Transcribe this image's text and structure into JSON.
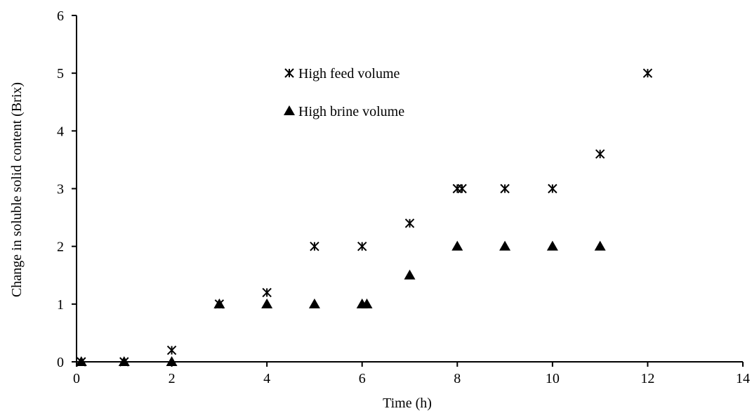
{
  "chart_data": {
    "type": "scatter",
    "title": "",
    "xlabel": "Time (h)",
    "ylabel": "Change in soluble solid content (Brix)",
    "xlim": [
      0,
      14
    ],
    "ylim": [
      0,
      6
    ],
    "xticks": [
      0,
      2,
      4,
      6,
      8,
      10,
      12,
      14
    ],
    "yticks": [
      0,
      1,
      2,
      3,
      4,
      5,
      6
    ],
    "grid": false,
    "legend_position": "upper-center",
    "series": [
      {
        "name": "High feed volume",
        "marker": "asterisk",
        "color": "#000000",
        "points": [
          [
            0.1,
            0
          ],
          [
            1,
            0
          ],
          [
            2,
            0.2
          ],
          [
            3,
            1
          ],
          [
            4,
            1.2
          ],
          [
            5,
            2
          ],
          [
            6,
            2
          ],
          [
            7,
            2.4
          ],
          [
            8,
            3
          ],
          [
            8.1,
            3
          ],
          [
            9,
            3
          ],
          [
            10,
            3
          ],
          [
            11,
            3.6
          ],
          [
            12,
            5
          ]
        ]
      },
      {
        "name": "High brine volume",
        "marker": "triangle",
        "color": "#000000",
        "points": [
          [
            0.1,
            0
          ],
          [
            1,
            0
          ],
          [
            2,
            0
          ],
          [
            3,
            1
          ],
          [
            4,
            1
          ],
          [
            5,
            1
          ],
          [
            6,
            1
          ],
          [
            6.1,
            1
          ],
          [
            7,
            1.5
          ],
          [
            8,
            2
          ],
          [
            9,
            2
          ],
          [
            10,
            2
          ],
          [
            11,
            2
          ]
        ]
      }
    ]
  }
}
